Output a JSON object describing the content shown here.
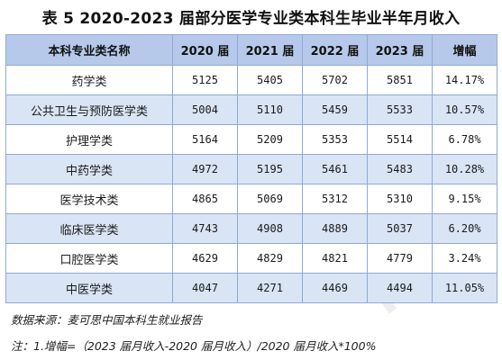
{
  "title": "表 5  2020-2023 届部分医学专业类本科生毕业半年月收入",
  "table": {
    "headers": [
      "本科专业类名称",
      "2020 届",
      "2021 届",
      "2022 届",
      "2023 届",
      "增幅"
    ],
    "rows": [
      [
        "药学类",
        "5125",
        "5405",
        "5702",
        "5851",
        "14.17%"
      ],
      [
        "公共卫生与预防医学类",
        "5004",
        "5110",
        "5459",
        "5533",
        "10.57%"
      ],
      [
        "护理学类",
        "5164",
        "5209",
        "5353",
        "5514",
        "6.78%"
      ],
      [
        "中药学类",
        "4972",
        "5195",
        "5461",
        "5483",
        "10.28%"
      ],
      [
        "医学技术类",
        "4865",
        "5069",
        "5312",
        "5310",
        "9.15%"
      ],
      [
        "临床医学类",
        "4743",
        "4908",
        "4889",
        "5037",
        "6.20%"
      ],
      [
        "口腔医学类",
        "4629",
        "4829",
        "4821",
        "4779",
        "3.24%"
      ],
      [
        "中医学类",
        "4047",
        "4271",
        "4469",
        "4494",
        "11.05%"
      ]
    ]
  },
  "notes": {
    "source": "数据来源：麦可思中国本科生就业报告",
    "formula": "注：1.增幅=（2023 届月收入-2020 届月收入）/2020 届月收入*100%"
  },
  "colors": {
    "header_bg": "#b7c9ea",
    "stripe_bg": "#d9e4f5",
    "border": "#8fa9d6"
  }
}
